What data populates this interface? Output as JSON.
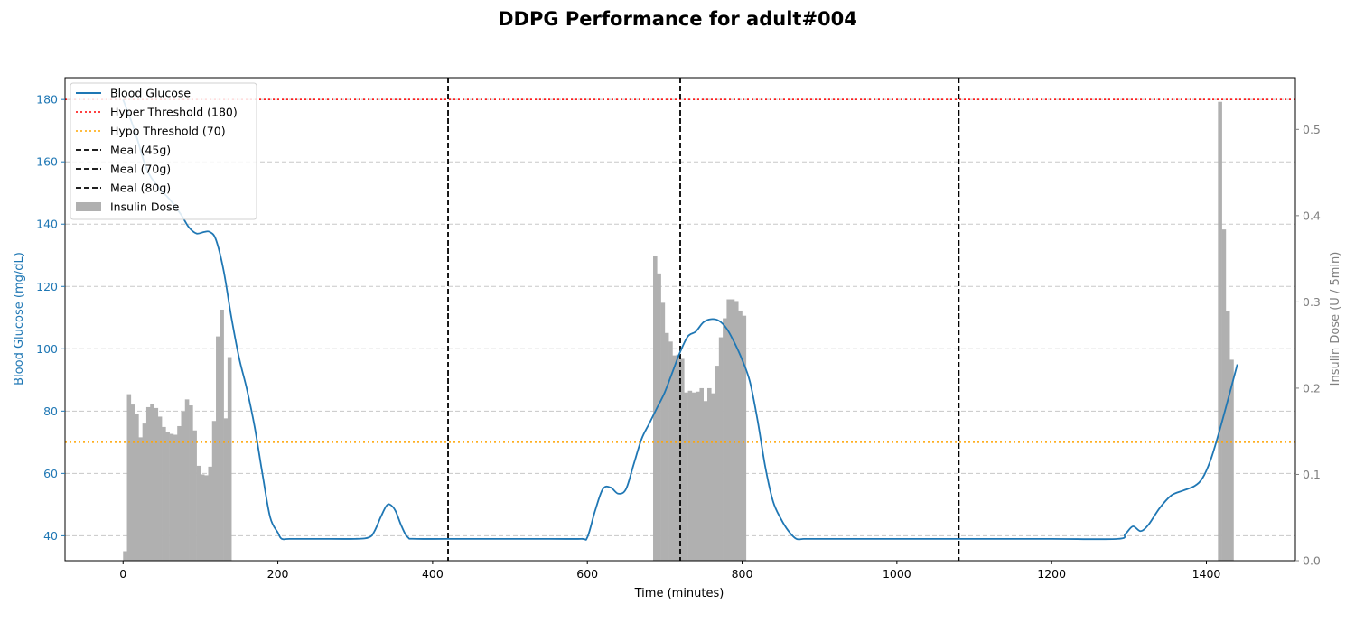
{
  "chart_data": {
    "type": "line",
    "title": "DDPG Performance for adult#004",
    "xlabel": "Time (minutes)",
    "ylabel": "Blood Glucose (mg/dL)",
    "y2label": "Insulin Dose (U / 5min)",
    "xlim": [
      -75,
      1515
    ],
    "ylim": [
      32,
      187
    ],
    "y2lim": [
      0,
      0.56
    ],
    "xticks": [
      0,
      200,
      400,
      600,
      800,
      1000,
      1200,
      1400
    ],
    "yticks": [
      40,
      60,
      80,
      100,
      120,
      140,
      160,
      180
    ],
    "y2ticks": [
      0.0,
      0.1,
      0.2,
      0.3,
      0.4,
      0.5
    ],
    "grid": "horizontal dashed",
    "legend_position": "top-left",
    "colors": {
      "glucose": "#1f77b4",
      "hyper": "#ff0000",
      "hypo": "#ffa500",
      "meal": "#000000",
      "insulin": "#b0b0b0",
      "y2axis": "#808080"
    },
    "thresholds": {
      "hyper": 180,
      "hypo": 70
    },
    "meals": [
      {
        "time": 420,
        "label": "Meal (45g)"
      },
      {
        "time": 720,
        "label": "Meal (70g)"
      },
      {
        "time": 1080,
        "label": "Meal (80g)"
      }
    ],
    "legend": [
      {
        "label": "Blood Glucose",
        "style": "line"
      },
      {
        "label": "Hyper Threshold (180)",
        "style": "hyper"
      },
      {
        "label": "Hypo Threshold (70)",
        "style": "hypo"
      },
      {
        "label": "Meal (45g)",
        "style": "meal"
      },
      {
        "label": "Meal (70g)",
        "style": "meal"
      },
      {
        "label": "Meal (80g)",
        "style": "meal"
      },
      {
        "label": "Insulin Dose",
        "style": "bar"
      }
    ],
    "glucose": {
      "name": "Blood Glucose",
      "x": [
        0,
        15,
        30,
        45,
        60,
        75,
        85,
        95,
        105,
        112,
        120,
        130,
        140,
        150,
        160,
        170,
        180,
        190,
        200,
        205,
        215,
        250,
        300,
        318,
        325,
        333,
        340,
        345,
        352,
        360,
        368,
        380,
        450,
        550,
        592,
        600,
        610,
        620,
        630,
        640,
        650,
        660,
        670,
        680,
        690,
        700,
        710,
        720,
        730,
        740,
        750,
        760,
        770,
        780,
        790,
        800,
        810,
        820,
        830,
        840,
        850,
        860,
        870,
        880,
        900,
        1000,
        1100,
        1200,
        1285,
        1295,
        1305,
        1315,
        1325,
        1340,
        1355,
        1370,
        1385,
        1395,
        1405,
        1415,
        1425,
        1440
      ],
      "y": [
        180,
        170,
        158,
        152,
        148,
        143,
        139,
        137,
        137.5,
        137.5,
        135,
        125,
        110,
        97,
        87,
        75,
        60,
        46,
        41,
        39,
        39,
        39,
        39,
        39.5,
        41.5,
        46,
        49.5,
        50,
        48,
        43,
        39.5,
        39,
        39,
        39,
        39,
        39.5,
        48,
        55,
        55.5,
        53.5,
        55,
        63,
        71,
        76,
        81,
        86,
        92.5,
        99,
        104,
        105.5,
        108.5,
        109.5,
        109,
        106.5,
        102,
        96.5,
        89.5,
        77,
        62,
        51,
        45.5,
        41.5,
        39,
        39,
        39,
        39,
        39,
        39,
        39,
        40.5,
        43,
        41.5,
        43.5,
        49,
        53,
        54.5,
        56,
        58.5,
        64,
        72,
        81,
        95
      ]
    },
    "insulin": {
      "name": "Insulin Dose",
      "bin_width": 5,
      "bins": [
        {
          "start": 0,
          "values": [
            0.011,
            0.193,
            0.181,
            0.17,
            0.143,
            0.159,
            0.178,
            0.182,
            0.177,
            0.167,
            0.155,
            0.149,
            0.147,
            0.146,
            0.156,
            0.173,
            0.187,
            0.18,
            0.151,
            0.11,
            0.1,
            0.099,
            0.109,
            0.162,
            0.26,
            0.291,
            0.165,
            0.236
          ]
        },
        {
          "start": 685,
          "values": [
            0.353,
            0.333,
            0.299,
            0.264,
            0.254,
            0.238,
            0.239,
            0.234,
            0.195,
            0.197,
            0.195,
            0.196,
            0.2,
            0.185,
            0.2,
            0.194,
            0.226,
            0.259,
            0.281,
            0.303,
            0.303,
            0.301,
            0.29,
            0.284
          ]
        },
        {
          "start": 1415,
          "values": [
            0.532,
            0.384,
            0.289,
            0.233
          ]
        }
      ]
    }
  }
}
